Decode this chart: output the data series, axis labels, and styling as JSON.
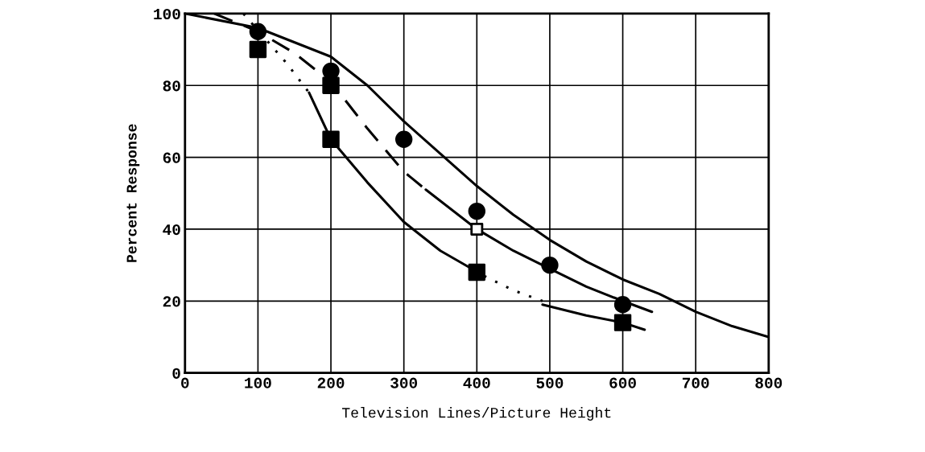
{
  "chart_data": {
    "type": "line",
    "xlabel": "Television Lines/Picture Height",
    "ylabel": "Percent Response",
    "xlim": [
      0,
      800
    ],
    "ylim": [
      0,
      100
    ],
    "xticks": [
      0,
      100,
      200,
      300,
      400,
      500,
      600,
      700,
      800
    ],
    "yticks": [
      0,
      20,
      40,
      60,
      80,
      100
    ],
    "grid": true,
    "legend": false,
    "series": [
      {
        "color": "#000000",
        "line_style": "solid",
        "marker": "none",
        "x": [
          0,
          100,
          200,
          250,
          300,
          350,
          400,
          450,
          500,
          550,
          600,
          650,
          700,
          750,
          800
        ],
        "values": [
          100,
          96,
          88,
          80,
          70,
          61,
          52,
          44,
          37,
          31,
          26,
          22,
          17,
          13,
          10
        ]
      },
      {
        "type": "line",
        "color": "#000000",
        "line_style": "dashed",
        "marker": "none",
        "x": [
          40,
          100,
          150,
          200,
          250,
          300,
          330
        ],
        "values": [
          100,
          95,
          89,
          81,
          68,
          56,
          51
        ]
      },
      {
        "type": "line",
        "color": "#000000",
        "line_style": "solid",
        "marker": "none",
        "x": [
          330,
          400,
          450,
          500,
          550,
          600,
          640
        ],
        "values": [
          51,
          40,
          34,
          29,
          24,
          20,
          17
        ]
      },
      {
        "type": "line",
        "color": "#000000",
        "line_style": "dotted",
        "marker": "none",
        "x": [
          80,
          110,
          140,
          170
        ],
        "values": [
          100,
          93,
          86,
          78
        ]
      },
      {
        "type": "line",
        "color": "#000000",
        "line_style": "solid",
        "marker": "none",
        "x": [
          170,
          200,
          250,
          300,
          350,
          410
        ],
        "values": [
          78,
          65,
          53,
          42,
          34,
          27
        ]
      },
      {
        "type": "line",
        "color": "#000000",
        "line_style": "dotted",
        "marker": "none",
        "x": [
          410,
          450,
          490
        ],
        "values": [
          27,
          23,
          20
        ]
      },
      {
        "type": "line",
        "color": "#000000",
        "line_style": "solid",
        "marker": "none",
        "x": [
          490,
          550,
          600,
          630
        ],
        "values": [
          19,
          16,
          14,
          12
        ]
      },
      {
        "type": "scatter",
        "color": "#000000",
        "marker": "circle",
        "x": [
          100,
          200,
          300,
          400,
          500,
          600
        ],
        "values": [
          95,
          84,
          65,
          45,
          30,
          19
        ]
      },
      {
        "type": "scatter",
        "color": "#000000",
        "marker": "square",
        "x": [
          100,
          200,
          200,
          400,
          600
        ],
        "values": [
          90,
          80,
          65,
          28,
          14
        ]
      },
      {
        "type": "scatter",
        "color": "#ffffff",
        "marker": "square",
        "x": [
          400
        ],
        "values": [
          40
        ]
      }
    ]
  }
}
